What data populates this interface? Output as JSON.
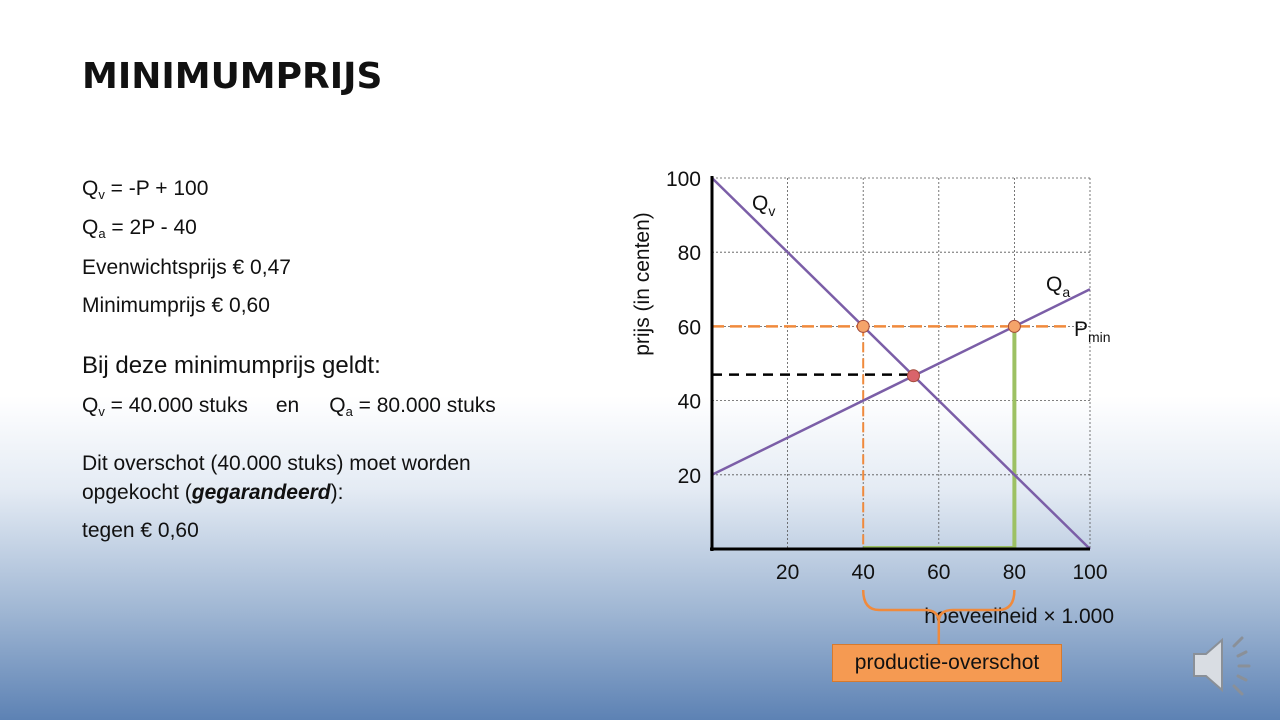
{
  "title": "MINIMUMPRIJS",
  "equations": {
    "qv_main": "Q",
    "qv_sub": "v",
    "qv_rest": " = -P + 100",
    "qa_main": "Q",
    "qa_sub": "a",
    "qa_rest": " = 2P - 40",
    "equilibrium": "Evenwichtsprijs € 0,47",
    "minimum": "Minimumprijs € 0,60"
  },
  "statement": {
    "heading": "Bij deze minimumprijs geldt:",
    "qv_main": "Q",
    "qv_sub": "v",
    "qv_rest": " = 40.000 stuks",
    "en": "en",
    "qa_main": "Q",
    "qa_sub": "a",
    "qa_rest": " = 80.000 stuks"
  },
  "surplus": {
    "line1": "Dit overschot (40.000 stuks) moet worden",
    "line2_pre": "opgekocht (",
    "line2_bold": "gegarandeerd",
    "line2_post": "):",
    "line3": "tegen € 0,60"
  },
  "callout": "productie-overschot",
  "speaker_icon": "speaker-icon",
  "chart_data": {
    "type": "line",
    "ylabel": "prijs (in centen)",
    "xlabel": "hoeveelheid × 1.000",
    "xlim": [
      0,
      100
    ],
    "ylim": [
      0,
      100
    ],
    "xticks": [
      20,
      40,
      60,
      80,
      100
    ],
    "yticks": [
      20,
      40,
      60,
      80,
      100
    ],
    "grid": true,
    "series": [
      {
        "name": "Qv",
        "label_main": "Q",
        "label_sub": "v",
        "x": [
          0,
          100
        ],
        "y": [
          100,
          0
        ],
        "color": "#7b5ea7"
      },
      {
        "name": "Qa",
        "label_main": "Q",
        "label_sub": "a",
        "x": [
          0,
          100
        ],
        "y": [
          20,
          70
        ],
        "color": "#7b5ea7"
      }
    ],
    "pmin": {
      "label_main": "P",
      "label_sub": "min",
      "y": 60,
      "color": "#f08a3c"
    },
    "equilibrium_line": {
      "x": 53,
      "y": 47
    },
    "points": [
      {
        "x": 40,
        "y": 60,
        "color": "#f5a46a"
      },
      {
        "x": 80,
        "y": 60,
        "color": "#f5a46a"
      },
      {
        "x": 53.3,
        "y": 46.7,
        "color": "#d9646b"
      }
    ],
    "surplus_range": {
      "from": 40,
      "to": 80,
      "y": 60,
      "color": "#9dc163"
    },
    "bracket_color": "#f08a3c"
  }
}
